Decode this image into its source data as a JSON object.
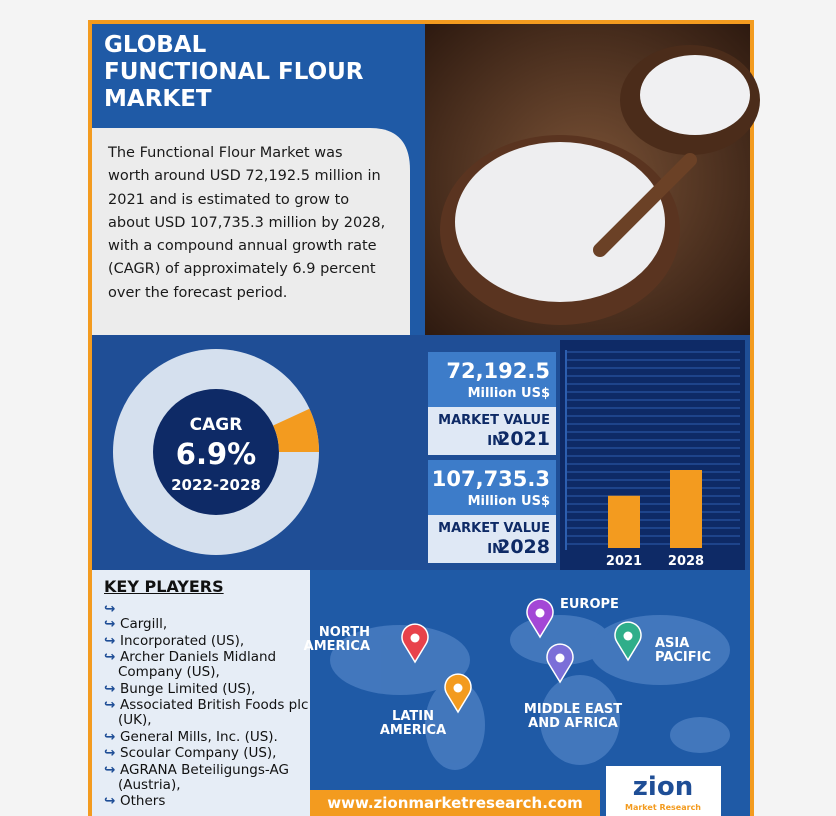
{
  "header": {
    "title": [
      "GLOBAL",
      "FUNCTIONAL FLOUR",
      "MARKET"
    ],
    "summary": [
      "The Functional Flour Market was",
      "worth around USD 72,192.5 million in",
      "2021 and is estimated to grow to",
      "about USD 107,735.3 million by 2028,",
      "with a compound annual growth rate",
      "(CAGR) of approximately 6.9 percent",
      "over the forecast period."
    ]
  },
  "cagr": {
    "title": "CAGR",
    "rate": {
      "value": 6.9,
      "label": "6.9%"
    },
    "period": "2022-2028"
  },
  "market": [
    {
      "amount": {
        "value": 72192.5,
        "label": "72,192.5"
      },
      "unit": "Million US$",
      "caption": "MARKET VALUE",
      "prefix": "IN",
      "year": "2021"
    },
    {
      "amount": {
        "value": 107735.3,
        "label": "107,735.3"
      },
      "unit": "Million US$",
      "caption": "MARKET VALUE",
      "prefix": "IN",
      "year": "2028"
    }
  ],
  "key_players": {
    "title": "KEY PLAYERS",
    "items": [
      "Cargill,",
      "Incorporated (US),",
      "Archer Daniels Midland Company (US),",
      "Bunge Limited (US),",
      "Associated British Foods plc (UK),",
      "General Mills, Inc. (US).",
      "Scoular Company (US),",
      "AGRANA Beteiligungs-AG (Austria),",
      "Others"
    ]
  },
  "regions": [
    {
      "name": "NORTH AMERICA",
      "color": "#e8424b"
    },
    {
      "name": "EUROPE",
      "color": "#a347d6"
    },
    {
      "name": "ASIA PACIFIC",
      "color": "#2fae8a"
    },
    {
      "name": "LATIN AMERICA",
      "color": "#f39b1f"
    },
    {
      "name": "MIDDLE EAST AND AFRICA",
      "color": "#7b6fd8"
    }
  ],
  "footer": {
    "url": "www.zionmarketresearch.com",
    "logo": "zion",
    "logo_sub": "Market Research"
  }
}
